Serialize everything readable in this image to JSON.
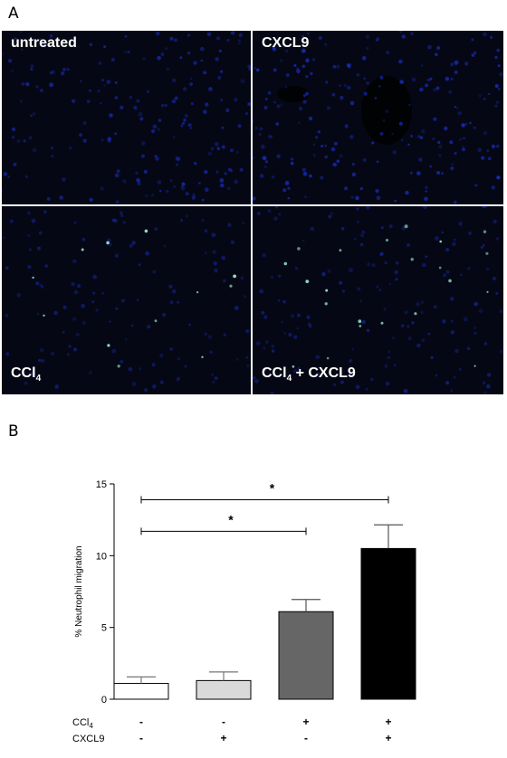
{
  "panels": {
    "a_label": "A",
    "b_label": "B"
  },
  "micrographs": [
    {
      "label_main": "untreated",
      "label_sub": "",
      "label_rest": ""
    },
    {
      "label_main": "CXCL9",
      "label_sub": "",
      "label_rest": ""
    },
    {
      "label_main": "CCl",
      "label_sub": "4",
      "label_rest": ""
    },
    {
      "label_main": "CCl",
      "label_sub": "4",
      "label_rest": " + CXCL9"
    }
  ],
  "colors": {
    "micrograph_bg": "#050814",
    "nuclei": "#1c2fd0",
    "neutrophil": "#9ee8d0"
  },
  "chart_data": {
    "type": "bar",
    "ylabel": "% Neutrophil migration",
    "ylim": [
      0,
      15
    ],
    "yticks": [
      0,
      5,
      10,
      15
    ],
    "bars": [
      {
        "value": 1.1,
        "error": 0.45,
        "color": "#ffffff",
        "ccl4": "-",
        "cxcl9": "-"
      },
      {
        "value": 1.3,
        "error": 0.6,
        "color": "#d9d9d9",
        "ccl4": "-",
        "cxcl9": "+"
      },
      {
        "value": 6.1,
        "error": 0.85,
        "color": "#666666",
        "ccl4": "+",
        "cxcl9": "-"
      },
      {
        "value": 10.5,
        "error": 1.65,
        "color": "#000000",
        "ccl4": "+",
        "cxcl9": "+"
      }
    ],
    "row_labels": [
      {
        "main": "CCl",
        "sub": "4"
      },
      {
        "main": "CXCL9",
        "sub": ""
      }
    ],
    "significance": [
      {
        "from": 0,
        "to": 3,
        "y": 13.9,
        "label": "*"
      },
      {
        "from": 0,
        "to": 2,
        "y": 11.7,
        "label": "*"
      }
    ]
  }
}
